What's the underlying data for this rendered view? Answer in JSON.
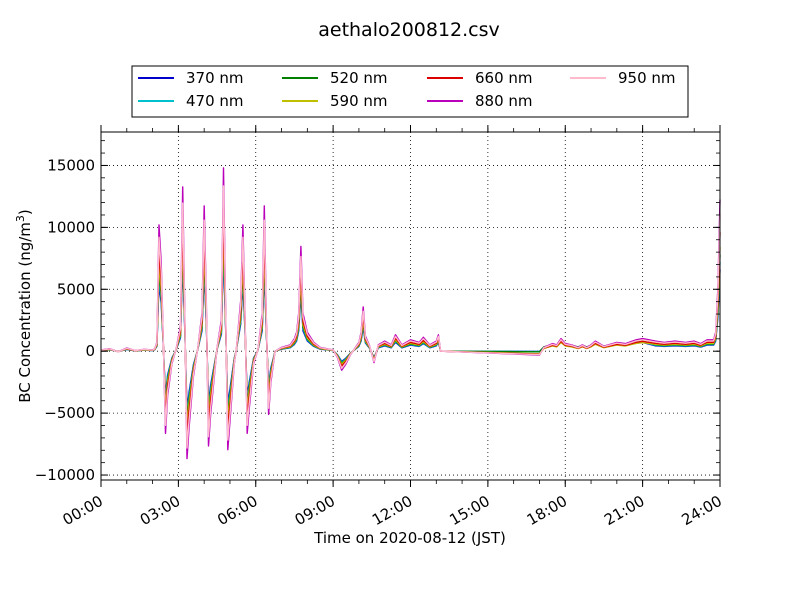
{
  "chart_data": {
    "type": "line",
    "title": "aethalo200812.csv",
    "xlabel": "Time on 2020-08-12 (JST)",
    "ylabel": "BC Concentration (ng/m",
    "ylabel_sup": "3",
    "ylabel_end": ")",
    "xlim": [
      "00:00",
      "24:00"
    ],
    "ylim": [
      -10400,
      17700
    ],
    "x_ticks": [
      "00:00",
      "03:00",
      "06:00",
      "09:00",
      "12:00",
      "15:00",
      "18:00",
      "21:00",
      "24:00"
    ],
    "y_ticks": [
      "−10000",
      "−5000",
      "0",
      "5000",
      "10000",
      "15000"
    ],
    "y_tick_values": [
      -10000,
      -5000,
      0,
      5000,
      10000,
      15000
    ],
    "grid": true,
    "legend_position": "top-center",
    "series": [
      {
        "name": "370 nm",
        "color": "#0000cc"
      },
      {
        "name": "470 nm",
        "color": "#00bfcf"
      },
      {
        "name": "520 nm",
        "color": "#007f00"
      },
      {
        "name": "590 nm",
        "color": "#bfbf00"
      },
      {
        "name": "660 nm",
        "color": "#dd0000"
      },
      {
        "name": "880 nm",
        "color": "#bb00bb"
      },
      {
        "name": "950 nm",
        "color": "#ffbbcc"
      }
    ],
    "base_points": [
      [
        "00:00",
        100
      ],
      [
        "00:20",
        200
      ],
      [
        "00:40",
        -50
      ],
      [
        "01:00",
        250
      ],
      [
        "01:20",
        50
      ],
      [
        "01:40",
        150
      ],
      [
        "02:00",
        100
      ],
      [
        "02:05",
        200
      ],
      [
        "02:10",
        700
      ],
      [
        "02:15",
        10000
      ],
      [
        "02:20",
        7000
      ],
      [
        "02:25",
        800
      ],
      [
        "02:30",
        -6500
      ],
      [
        "02:35",
        -3500
      ],
      [
        "02:45",
        -1000
      ],
      [
        "02:55",
        200
      ],
      [
        "03:05",
        2000
      ],
      [
        "03:10",
        13000
      ],
      [
        "03:15",
        3000
      ],
      [
        "03:20",
        -8500
      ],
      [
        "03:25",
        -6000
      ],
      [
        "03:35",
        -2000
      ],
      [
        "03:45",
        200
      ],
      [
        "03:55",
        3000
      ],
      [
        "04:00",
        11500
      ],
      [
        "04:05",
        4000
      ],
      [
        "04:10",
        -7500
      ],
      [
        "04:15",
        -5000
      ],
      [
        "04:25",
        -1500
      ],
      [
        "04:30",
        300
      ],
      [
        "04:40",
        2500
      ],
      [
        "04:45",
        14500
      ],
      [
        "04:50",
        3000
      ],
      [
        "04:55",
        -7800
      ],
      [
        "05:00",
        -5500
      ],
      [
        "05:10",
        -1000
      ],
      [
        "05:15",
        200
      ],
      [
        "05:25",
        4000
      ],
      [
        "05:30",
        10000
      ],
      [
        "05:35",
        3000
      ],
      [
        "05:40",
        -6500
      ],
      [
        "05:45",
        -4500
      ],
      [
        "05:55",
        -1000
      ],
      [
        "06:05",
        100
      ],
      [
        "06:15",
        3000
      ],
      [
        "06:20",
        11500
      ],
      [
        "06:25",
        2000
      ],
      [
        "06:30",
        -5000
      ],
      [
        "06:35",
        -2500
      ],
      [
        "06:45",
        0
      ],
      [
        "07:00",
        300
      ],
      [
        "07:20",
        500
      ],
      [
        "07:30",
        1000
      ],
      [
        "07:35",
        1500
      ],
      [
        "07:40",
        3000
      ],
      [
        "07:45",
        8300
      ],
      [
        "07:50",
        3000
      ],
      [
        "08:00",
        1500
      ],
      [
        "08:15",
        700
      ],
      [
        "08:30",
        300
      ],
      [
        "08:45",
        200
      ],
      [
        "09:00",
        100
      ],
      [
        "09:10",
        -500
      ],
      [
        "09:20",
        -1500
      ],
      [
        "09:30",
        -1000
      ],
      [
        "09:40",
        -300
      ],
      [
        "09:50",
        200
      ],
      [
        "10:00",
        700
      ],
      [
        "10:05",
        1500
      ],
      [
        "10:10",
        3500
      ],
      [
        "10:15",
        1200
      ],
      [
        "10:25",
        400
      ],
      [
        "10:35",
        -900
      ],
      [
        "10:45",
        500
      ],
      [
        "11:00",
        800
      ],
      [
        "11:15",
        500
      ],
      [
        "11:25",
        1300
      ],
      [
        "11:40",
        500
      ],
      [
        "12:00",
        900
      ],
      [
        "12:20",
        700
      ],
      [
        "12:30",
        1100
      ],
      [
        "12:45",
        500
      ],
      [
        "13:00",
        800
      ],
      [
        "13:05",
        1300
      ],
      [
        "13:10",
        0
      ],
      [
        "17:00",
        -300
      ],
      [
        "17:10",
        300
      ],
      [
        "17:30",
        600
      ],
      [
        "17:40",
        500
      ],
      [
        "17:50",
        1000
      ],
      [
        "18:00",
        600
      ],
      [
        "18:15",
        500
      ],
      [
        "18:30",
        300
      ],
      [
        "18:40",
        500
      ],
      [
        "18:50",
        300
      ],
      [
        "19:00",
        500
      ],
      [
        "19:10",
        800
      ],
      [
        "19:30",
        400
      ],
      [
        "20:00",
        700
      ],
      [
        "20:20",
        600
      ],
      [
        "20:45",
        900
      ],
      [
        "21:00",
        1000
      ],
      [
        "21:30",
        800
      ],
      [
        "21:50",
        700
      ],
      [
        "22:15",
        800
      ],
      [
        "22:40",
        700
      ],
      [
        "23:00",
        800
      ],
      [
        "23:15",
        600
      ],
      [
        "23:30",
        900
      ],
      [
        "23:45",
        900
      ],
      [
        "23:50",
        1500
      ],
      [
        "23:55",
        5000
      ],
      [
        "24:00",
        12000
      ]
    ],
    "series_scale": [
      0.55,
      0.6,
      0.65,
      0.7,
      0.8,
      1.02,
      0.92
    ]
  }
}
